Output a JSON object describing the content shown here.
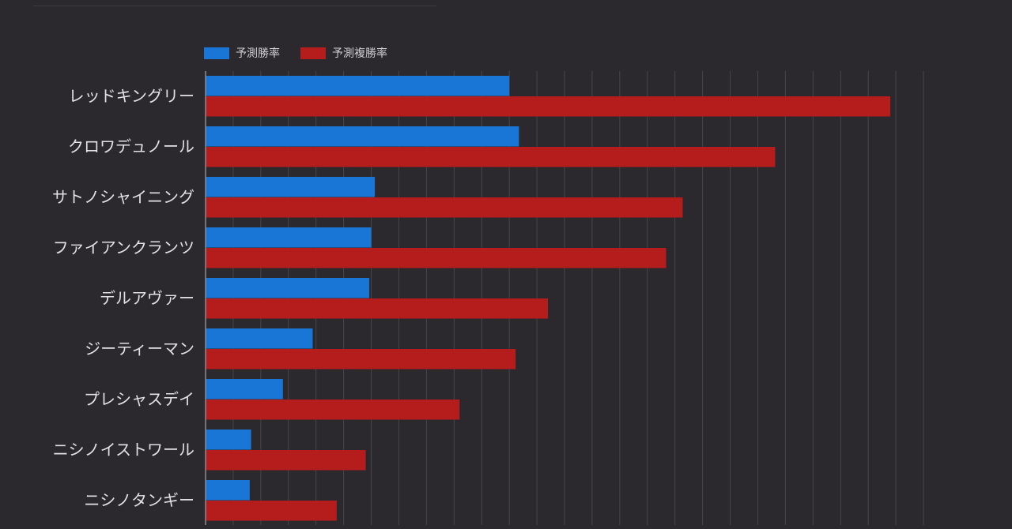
{
  "colors": {
    "background": "#2b292e",
    "grid": "#48464c",
    "axis": "#8a8a90",
    "label": "#e2e2e4",
    "win": "#1a76d6",
    "place": "#b51d1d"
  },
  "chart_data": {
    "type": "bar",
    "orientation": "horizontal",
    "legend_position": "top-left",
    "grid": true,
    "xlim": [
      0,
      26
    ],
    "categories": [
      "レッドキングリー",
      "クロワデュノール",
      "サトノシャイニング",
      "ファイアンクランツ",
      "デルアヴァー",
      "ジーティーマン",
      "プレシャスデイ",
      "ニシノイストワール",
      "ニシノタンギー"
    ],
    "series": [
      {
        "name": "予測勝率",
        "color": "#1a76d6",
        "values": [
          11.0,
          11.35,
          6.13,
          6.0,
          5.93,
          3.88,
          2.8,
          1.65,
          1.6
        ]
      },
      {
        "name": "予測複勝率",
        "color": "#b51d1d",
        "values": [
          24.8,
          20.63,
          17.28,
          16.68,
          12.4,
          11.23,
          9.2,
          5.8,
          4.75
        ]
      }
    ]
  }
}
